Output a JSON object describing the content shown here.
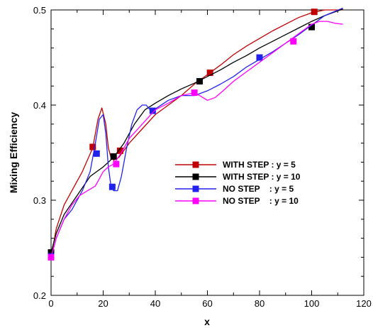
{
  "chart_data": {
    "type": "line",
    "title": "",
    "xlabel": "x",
    "ylabel": "Mixing Efficiency",
    "xlim": [
      0,
      120
    ],
    "ylim": [
      0.2,
      0.5
    ],
    "xticks": [
      0,
      20,
      40,
      60,
      80,
      100,
      120
    ],
    "yticks": [
      0.2,
      0.3,
      0.4,
      0.5
    ],
    "xtick_labels": [
      "0",
      "20",
      "40",
      "60",
      "80",
      "100",
      "120"
    ],
    "ytick_labels": [
      "0.2",
      "0.3",
      "0.4",
      "0.5"
    ],
    "grid": false,
    "legend_position": "center-right",
    "series": [
      {
        "name": "WITH STEP : y = 5",
        "color": "#c00000",
        "x": [
          0,
          2,
          5,
          8,
          12,
          16,
          18,
          19.5,
          21,
          22,
          23,
          24,
          26,
          30,
          35,
          40,
          45,
          50,
          55,
          60,
          65,
          70,
          75,
          80,
          85,
          90,
          95,
          100,
          105,
          112
        ],
        "y": [
          0.24,
          0.27,
          0.295,
          0.31,
          0.33,
          0.355,
          0.385,
          0.397,
          0.38,
          0.355,
          0.345,
          0.342,
          0.345,
          0.36,
          0.375,
          0.39,
          0.4,
          0.41,
          0.422,
          0.432,
          0.442,
          0.453,
          0.462,
          0.47,
          0.478,
          0.485,
          0.492,
          0.497,
          0.5,
          0.5
        ],
        "markers_x": [
          0,
          16,
          26.5,
          61,
          101
        ],
        "markers_y": [
          0.245,
          0.356,
          0.352,
          0.434,
          0.498
        ]
      },
      {
        "name": "WITH STEP : y = 10",
        "color": "#000000",
        "x": [
          0,
          2,
          5,
          10,
          15,
          20,
          24,
          28,
          32,
          36,
          40,
          45,
          50,
          55,
          60,
          65,
          70,
          75,
          80,
          85,
          90,
          95,
          100,
          105,
          112
        ],
        "y": [
          0.245,
          0.265,
          0.285,
          0.305,
          0.325,
          0.335,
          0.345,
          0.36,
          0.38,
          0.395,
          0.402,
          0.41,
          0.417,
          0.423,
          0.43,
          0.437,
          0.445,
          0.452,
          0.46,
          0.467,
          0.474,
          0.481,
          0.488,
          0.494,
          0.501
        ],
        "markers_x": [
          0,
          24,
          57,
          100
        ],
        "markers_y": [
          0.245,
          0.346,
          0.425,
          0.482
        ]
      },
      {
        "name": "NO STEP    : y = 5",
        "color": "#2222ee",
        "x": [
          0,
          2,
          5,
          8,
          12,
          15,
          17,
          18.5,
          20,
          21,
          22,
          23,
          24,
          25.5,
          27,
          29,
          31,
          33,
          35,
          36.5,
          38,
          40,
          45,
          50,
          55,
          60,
          65,
          70,
          75,
          80,
          85,
          90,
          95,
          100,
          105,
          112
        ],
        "y": [
          0.24,
          0.26,
          0.28,
          0.29,
          0.31,
          0.33,
          0.36,
          0.385,
          0.39,
          0.37,
          0.335,
          0.315,
          0.31,
          0.31,
          0.325,
          0.355,
          0.38,
          0.395,
          0.4,
          0.4,
          0.395,
          0.396,
          0.405,
          0.41,
          0.41,
          0.415,
          0.422,
          0.43,
          0.44,
          0.448,
          0.456,
          0.465,
          0.474,
          0.484,
          0.494,
          0.502
        ],
        "markers_x": [
          0,
          17.5,
          23.5,
          39,
          80
        ],
        "markers_y": [
          0.241,
          0.349,
          0.314,
          0.394,
          0.45
        ]
      },
      {
        "name": "NO STEP    : y = 10",
        "color": "#ff00ff",
        "x": [
          0,
          2,
          5,
          8,
          11,
          14,
          17,
          20,
          22,
          24,
          27,
          30,
          35,
          40,
          45,
          50,
          55,
          57,
          60,
          63,
          66,
          70,
          75,
          80,
          85,
          90,
          95,
          100,
          103,
          106,
          109,
          112
        ],
        "y": [
          0.24,
          0.26,
          0.28,
          0.295,
          0.305,
          0.31,
          0.315,
          0.33,
          0.335,
          0.338,
          0.35,
          0.365,
          0.38,
          0.395,
          0.402,
          0.41,
          0.413,
          0.41,
          0.405,
          0.408,
          0.415,
          0.425,
          0.435,
          0.445,
          0.455,
          0.465,
          0.475,
          0.485,
          0.488,
          0.488,
          0.486,
          0.485
        ],
        "markers_x": [
          0,
          25,
          55,
          93
        ],
        "markers_y": [
          0.24,
          0.338,
          0.413,
          0.467
        ]
      }
    ]
  }
}
